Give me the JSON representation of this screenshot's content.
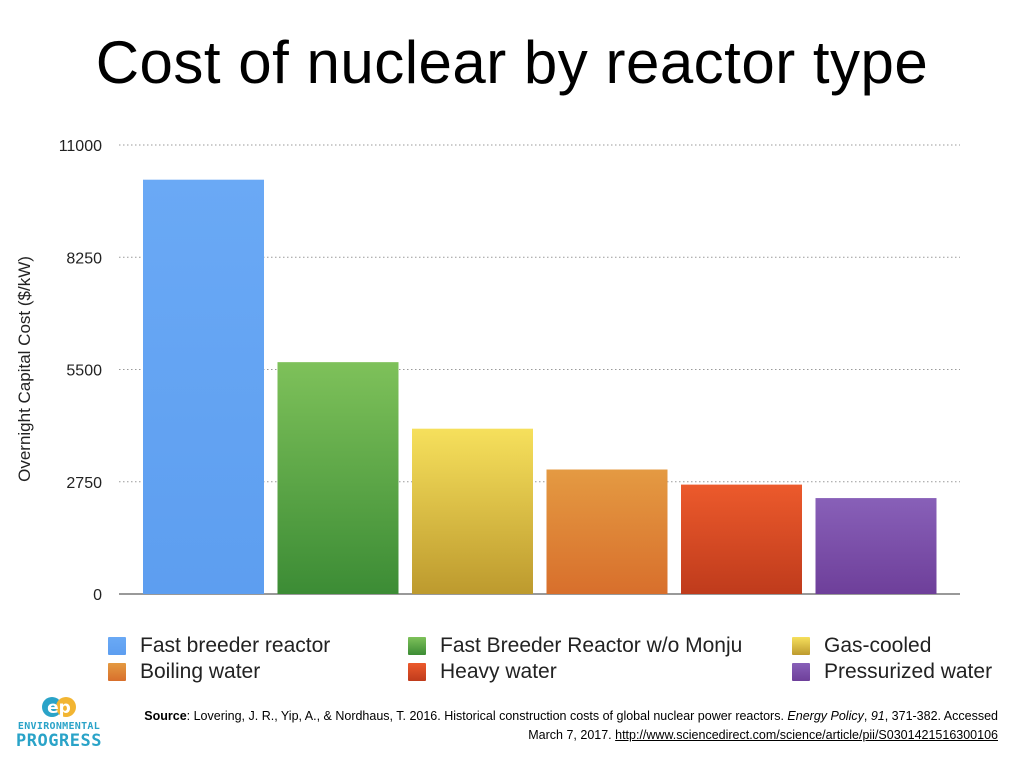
{
  "slide": {
    "title": "Cost of nuclear by reactor type"
  },
  "chart_data": {
    "type": "bar",
    "ylabel": "Overnight Capital Cost ($/kW)",
    "xlabel": "",
    "ylim": [
      0,
      11000
    ],
    "yticks": [
      "0",
      "2750",
      "5500",
      "8250",
      "11000"
    ],
    "grid": true,
    "legend_position": "bottom",
    "categories": [
      "Fast breeder reactor",
      "Fast Breeder Reactor w/o Monju",
      "Gas-cooled",
      "Boiling water",
      "Heavy water",
      "Pressurized water"
    ],
    "values": [
      10150,
      5680,
      4050,
      3050,
      2680,
      2350
    ],
    "colors": [
      [
        "#6aa9f5",
        "#5d9ef0"
      ],
      [
        "#7ec15a",
        "#3c8c35"
      ],
      [
        "#f6e05c",
        "#bd9a2e"
      ],
      [
        "#e49a42",
        "#d86f2c"
      ],
      [
        "#ec5a2c",
        "#bf3b1c"
      ],
      [
        "#8860b8",
        "#6e3f9a"
      ]
    ]
  },
  "source": {
    "label": "Source",
    "text1": ": Lovering, J. R., Yip, A., & Nordhaus, T. 2016. Historical construction costs of global nuclear power reactors. ",
    "journal": "Energy Policy",
    "sep": ", ",
    "volume": "91",
    "text2": ", 371-382. Accessed March 7, 2017. ",
    "url": "http://www.sciencedirect.com/science/article/pii/S0301421516300106"
  },
  "logo": {
    "mark": "ep",
    "line1": "ENVIRONMENTAL",
    "line2": "PROGRESS",
    "colors": [
      "#2aa3c8",
      "#f2b532"
    ]
  }
}
